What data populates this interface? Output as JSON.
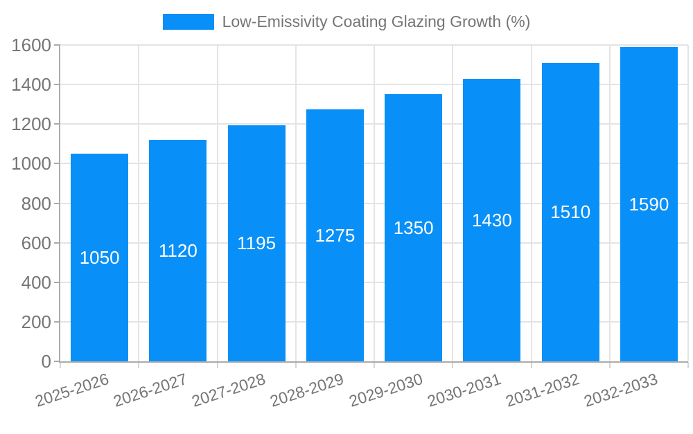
{
  "chart_data": {
    "type": "bar",
    "title": "Low-Emissivity Coating Glazing Growth (%)",
    "legend_position": "top-center",
    "categories": [
      "2025-2026",
      "2026-2027",
      "2027-2028",
      "2028-2029",
      "2029-2030",
      "2030-2031",
      "2031-2032",
      "2032-2033"
    ],
    "values": [
      1050,
      1120,
      1195,
      1275,
      1350,
      1430,
      1510,
      1590
    ],
    "xlabel": "",
    "ylabel": "",
    "ylim": [
      0,
      1600
    ],
    "yticks": [
      0,
      200,
      400,
      600,
      800,
      1000,
      1200,
      1400,
      1600
    ],
    "grid": true,
    "x_label_angle_deg": -18,
    "bar_color": "#0990F8",
    "value_label_color": "#FFFFFF",
    "axis_text_color": "#757575",
    "grid_color": "#E4E4E4",
    "axis_line_color": "#ABABAB",
    "background_color": "#FFFFFF"
  }
}
